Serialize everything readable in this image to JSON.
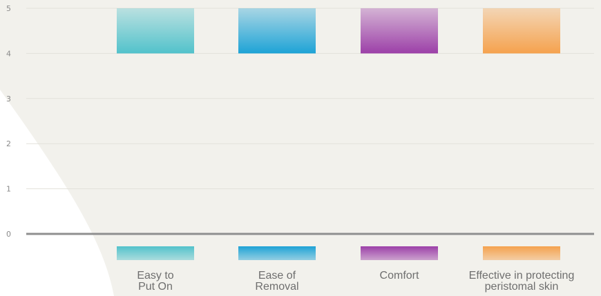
{
  "chart_data": {
    "type": "bar",
    "categories": [
      {
        "lines": [
          "Easy to",
          "Put On"
        ],
        "color": "#52c2cb"
      },
      {
        "lines": [
          "Ease of",
          "Removal"
        ],
        "color": "#1ea3d6"
      },
      {
        "lines": [
          "Comfort"
        ],
        "color": "#9c40a8"
      },
      {
        "lines": [
          "Effective in protecting",
          "peristomal skin"
        ],
        "color": "#f5a24e"
      }
    ],
    "values": [
      4,
      4,
      4,
      4
    ],
    "value_top": 5,
    "yticks": [
      "0",
      "1",
      "2",
      "3",
      "4",
      "5"
    ],
    "ylim": [
      0,
      5
    ],
    "grid": true
  },
  "theme": {
    "panel_color": "#f2f1ec",
    "grid_color": "#e2e1da",
    "baseline_color": "#8f8f8f"
  }
}
